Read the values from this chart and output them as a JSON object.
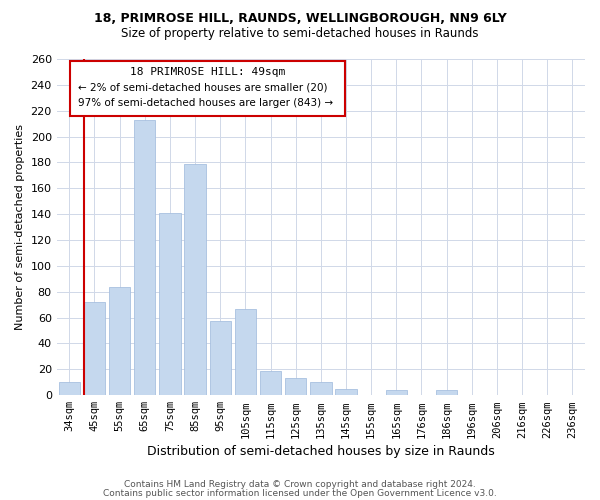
{
  "title1": "18, PRIMROSE HILL, RAUNDS, WELLINGBOROUGH, NN9 6LY",
  "title2": "Size of property relative to semi-detached houses in Raunds",
  "xlabel": "Distribution of semi-detached houses by size in Raunds",
  "ylabel": "Number of semi-detached properties",
  "footer1": "Contains HM Land Registry data © Crown copyright and database right 2024.",
  "footer2": "Contains public sector information licensed under the Open Government Licence v3.0.",
  "categories": [
    "34sqm",
    "45sqm",
    "55sqm",
    "65sqm",
    "75sqm",
    "85sqm",
    "95sqm",
    "105sqm",
    "115sqm",
    "125sqm",
    "135sqm",
    "145sqm",
    "155sqm",
    "165sqm",
    "176sqm",
    "186sqm",
    "196sqm",
    "206sqm",
    "216sqm",
    "226sqm",
    "236sqm"
  ],
  "values": [
    10,
    72,
    84,
    213,
    141,
    179,
    57,
    67,
    19,
    13,
    10,
    5,
    0,
    4,
    0,
    4,
    0,
    0,
    0,
    0,
    0
  ],
  "bar_color": "#c5d8ee",
  "bar_edge_color": "#a8c0e0",
  "highlight_color": "#cc0000",
  "highlight_bar_idx": 1,
  "ylim": [
    0,
    260
  ],
  "yticks": [
    0,
    20,
    40,
    60,
    80,
    100,
    120,
    140,
    160,
    180,
    200,
    220,
    240,
    260
  ],
  "annotation_title": "18 PRIMROSE HILL: 49sqm",
  "annotation_line1": "← 2% of semi-detached houses are smaller (20)",
  "annotation_line2": "97% of semi-detached houses are larger (843) →",
  "grid_color": "#d0d8e8",
  "title1_fontsize": 9,
  "title2_fontsize": 8.5,
  "xlabel_fontsize": 9,
  "ylabel_fontsize": 8,
  "footer_fontsize": 6.5
}
